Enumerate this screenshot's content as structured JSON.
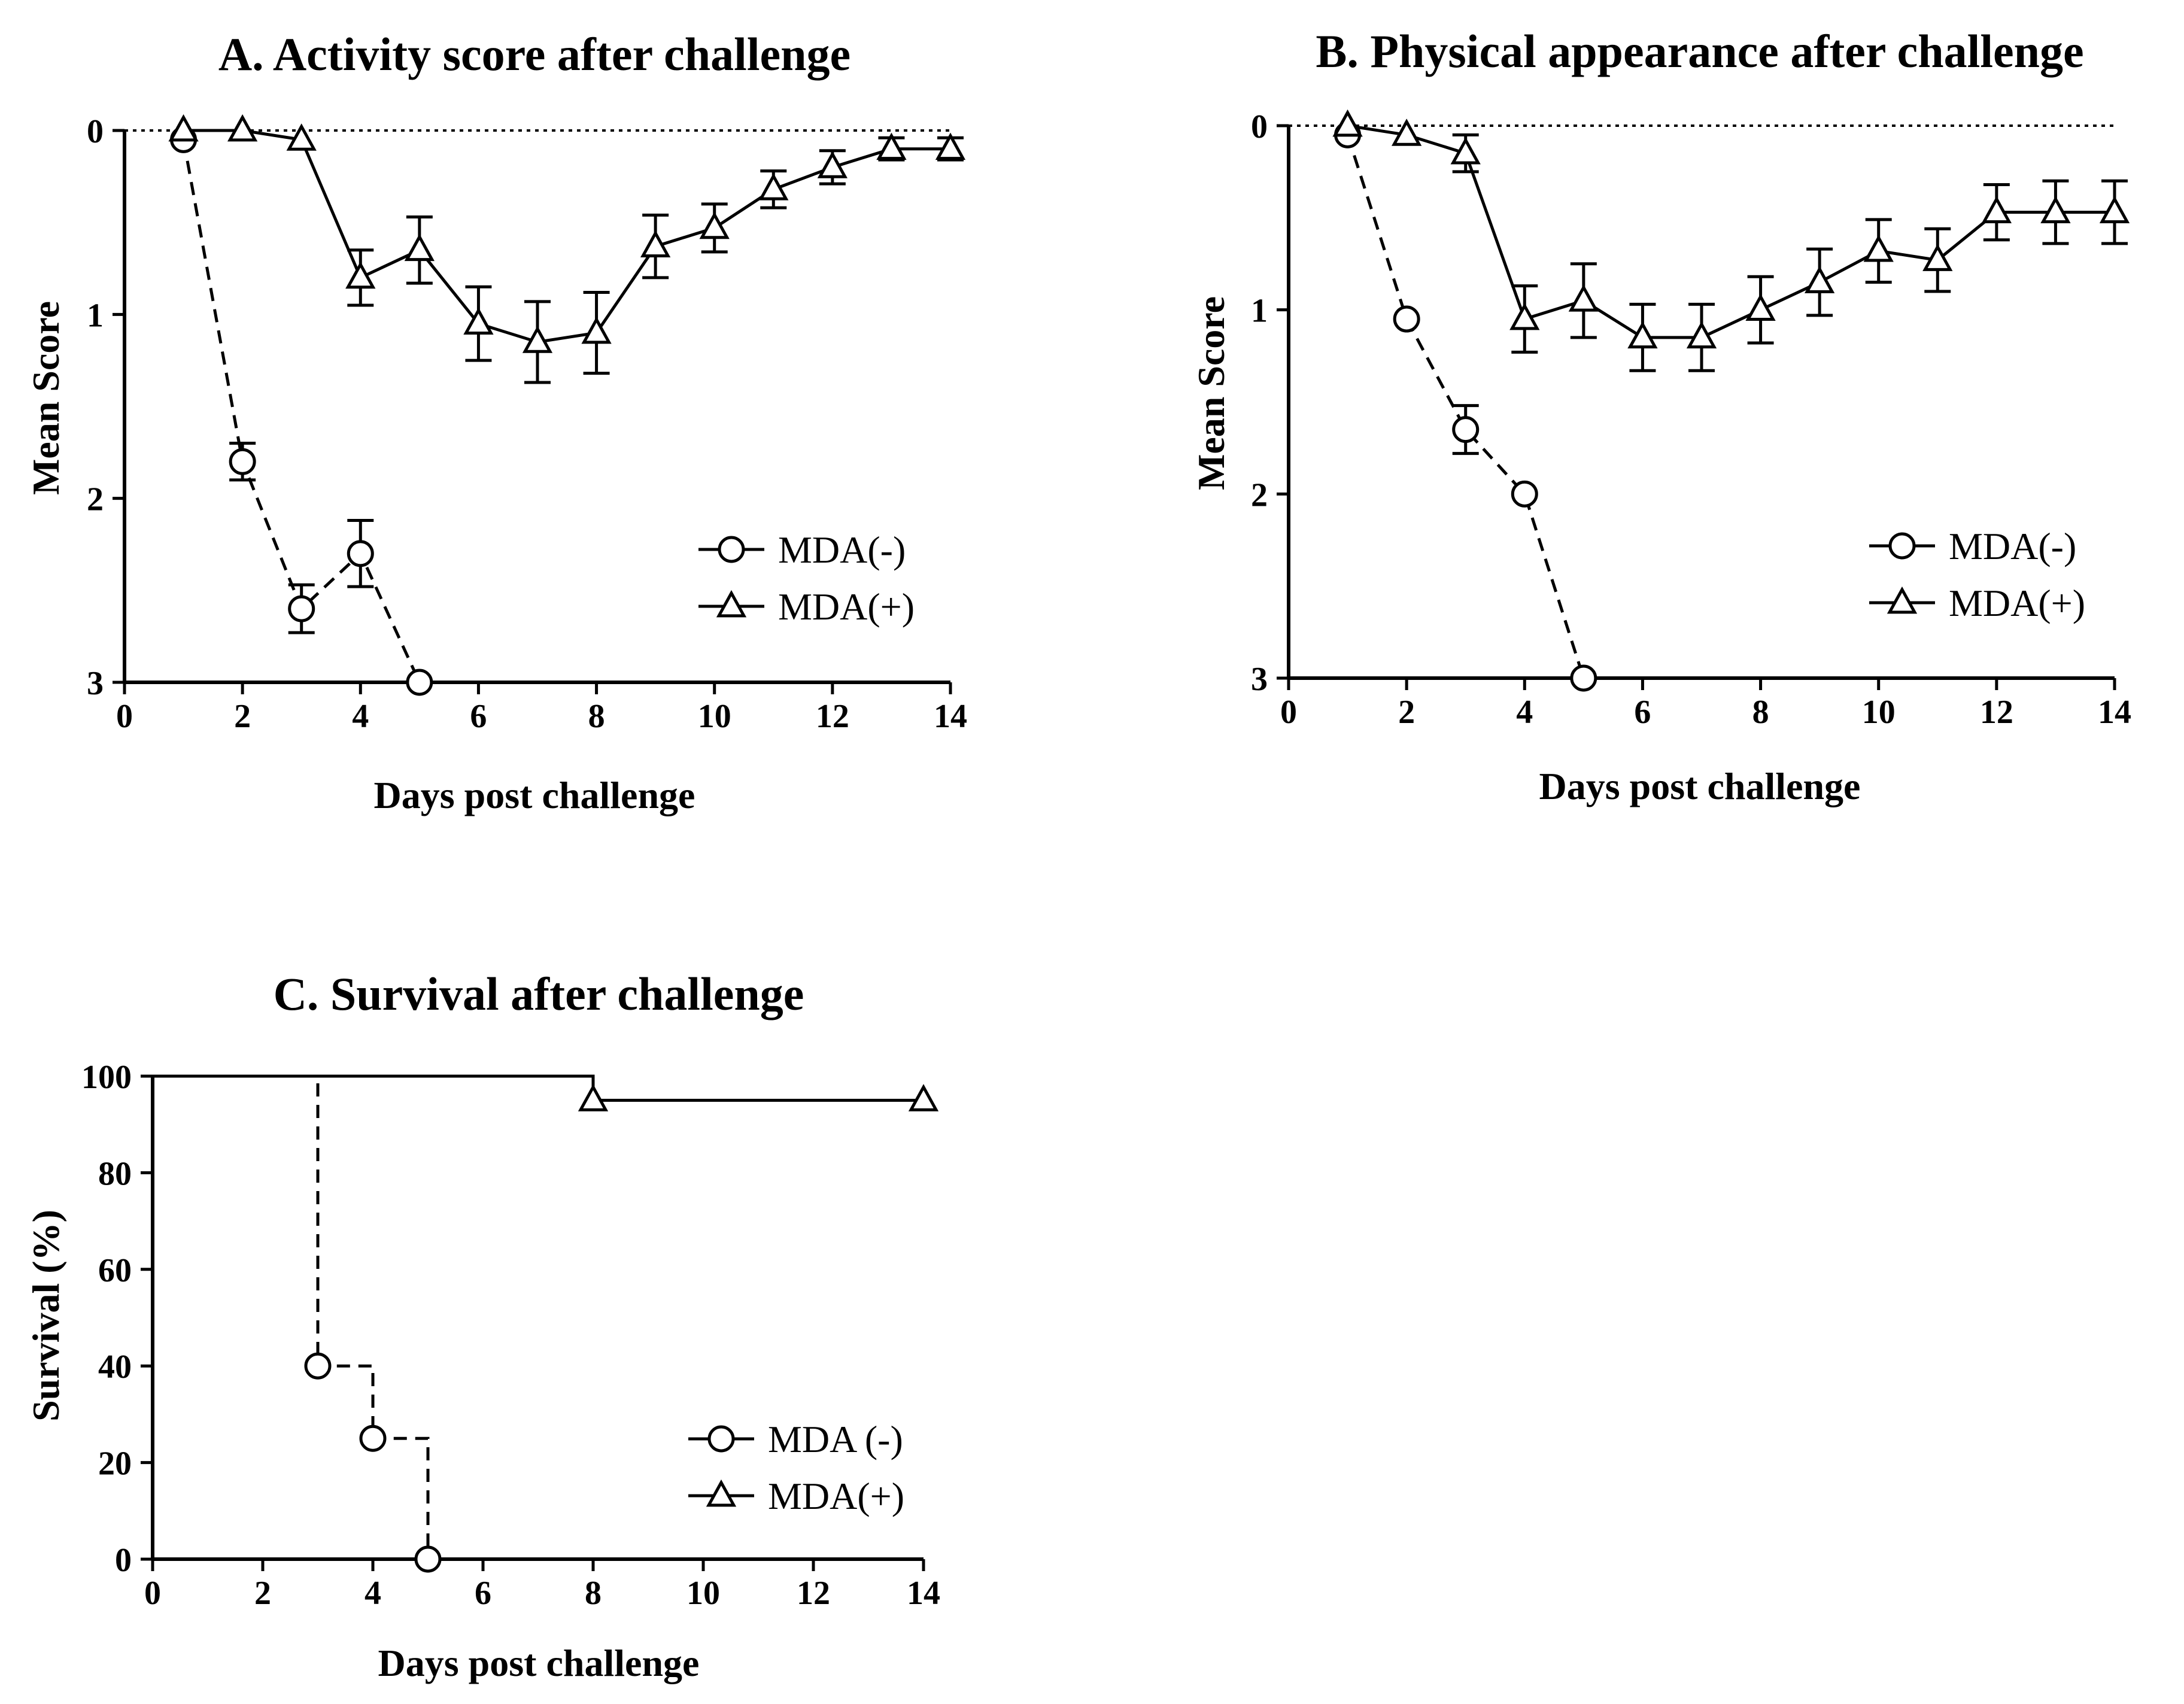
{
  "chart_data": [
    {
      "id": "A",
      "type": "line",
      "title": "A. Activity score after challenge",
      "xlabel": "Days post challenge",
      "ylabel": "Mean Score",
      "xlim": [
        0,
        14
      ],
      "ylim": [
        0,
        3
      ],
      "y_inverted": true,
      "reference_line": 0,
      "xticks": [
        0,
        2,
        4,
        6,
        8,
        10,
        12,
        14
      ],
      "yticks": [
        0,
        1,
        2,
        3
      ],
      "legend_position": "center-right",
      "series": [
        {
          "name": "MDA(-)",
          "marker": "circle",
          "line_style": "dashed",
          "x": [
            1,
            2,
            3,
            4,
            5
          ],
          "values": [
            0.05,
            1.8,
            2.6,
            2.3,
            3.0
          ],
          "errors": [
            0,
            0.1,
            0.13,
            0.18,
            0
          ]
        },
        {
          "name": "MDA(+)",
          "marker": "triangle",
          "line_style": "solid",
          "x": [
            1,
            2,
            3,
            4,
            5,
            6,
            7,
            8,
            9,
            10,
            11,
            12,
            13,
            14
          ],
          "values": [
            0.0,
            0.0,
            0.05,
            0.8,
            0.65,
            1.05,
            1.15,
            1.1,
            0.63,
            0.53,
            0.32,
            0.2,
            0.1,
            0.1
          ],
          "errors": [
            0,
            0,
            0,
            0.15,
            0.18,
            0.2,
            0.22,
            0.22,
            0.17,
            0.13,
            0.1,
            0.09,
            0.06,
            0.06
          ]
        }
      ]
    },
    {
      "id": "B",
      "type": "line",
      "title": "B. Physical appearance after challenge",
      "xlabel": "Days post challenge",
      "ylabel": "Mean Score",
      "xlim": [
        0,
        14
      ],
      "ylim": [
        0,
        3
      ],
      "y_inverted": true,
      "reference_line": 0,
      "xticks": [
        0,
        2,
        4,
        6,
        8,
        10,
        12,
        14
      ],
      "yticks": [
        0,
        1,
        2,
        3
      ],
      "legend_position": "center-right",
      "series": [
        {
          "name": "MDA(-)",
          "marker": "circle",
          "line_style": "dashed",
          "x": [
            1,
            2,
            3,
            4,
            5
          ],
          "values": [
            0.05,
            1.05,
            1.65,
            2.0,
            3.0
          ],
          "errors": [
            0,
            0,
            0.13,
            0,
            0
          ]
        },
        {
          "name": "MDA(+)",
          "marker": "triangle",
          "line_style": "solid",
          "x": [
            1,
            2,
            3,
            4,
            5,
            6,
            7,
            8,
            9,
            10,
            11,
            12,
            13,
            14
          ],
          "values": [
            0.0,
            0.05,
            0.15,
            1.05,
            0.95,
            1.15,
            1.15,
            1.0,
            0.85,
            0.68,
            0.73,
            0.47,
            0.47,
            0.47
          ],
          "errors": [
            0,
            0,
            0.1,
            0.18,
            0.2,
            0.18,
            0.18,
            0.18,
            0.18,
            0.17,
            0.17,
            0.15,
            0.17,
            0.17
          ]
        }
      ]
    },
    {
      "id": "C",
      "type": "line",
      "title": "C. Survival after challenge",
      "xlabel": "Days post challenge",
      "ylabel": "Survival (%)",
      "xlim": [
        0,
        14
      ],
      "ylim": [
        0,
        100
      ],
      "step": true,
      "xticks": [
        0,
        2,
        4,
        6,
        8,
        10,
        12,
        14
      ],
      "yticks": [
        0,
        20,
        40,
        60,
        80,
        100
      ],
      "legend_position": "lower-right",
      "series": [
        {
          "name": "MDA (-)",
          "marker": "circle",
          "line_style": "dashed",
          "step_x": [
            0,
            3,
            4,
            5
          ],
          "step_y": [
            100,
            40,
            25,
            0
          ],
          "x": [
            3,
            4,
            5
          ],
          "values": [
            40,
            25,
            0
          ]
        },
        {
          "name": "MDA(+)",
          "marker": "triangle",
          "line_style": "solid",
          "step_x": [
            0,
            8,
            14
          ],
          "step_y": [
            100,
            95,
            95
          ],
          "x": [
            8,
            14
          ],
          "values": [
            95,
            95
          ]
        }
      ]
    }
  ]
}
